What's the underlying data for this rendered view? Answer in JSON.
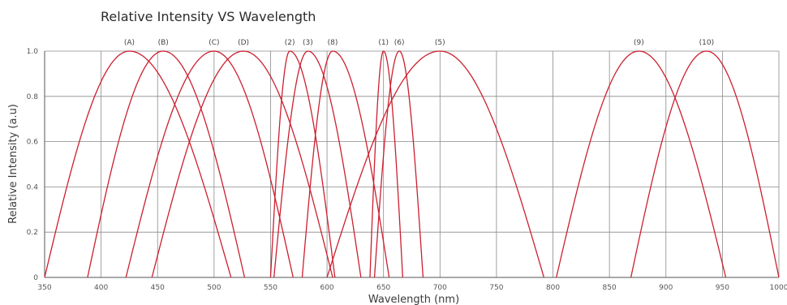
{
  "chart_data": {
    "type": "line",
    "title": "Relative Intensity VS Wavelength",
    "xlabel": "Wavelength (nm)",
    "ylabel": "Relative Intensity (a.u)",
    "xlim": [
      350,
      1000
    ],
    "ylim": [
      0,
      1.0
    ],
    "x_ticks": [
      "350",
      "400",
      "450",
      "500",
      "550",
      "600",
      "650",
      "700",
      "750",
      "800",
      "850",
      "900",
      "950",
      "1000"
    ],
    "y_ticks": [
      "0",
      "0.2",
      "0.4",
      "0.6",
      "0.8",
      "1.0"
    ],
    "grid": true,
    "line_color": "#cc1f2f",
    "series": [
      {
        "name": "(A)",
        "peak": 425,
        "range": [
          350,
          515
        ]
      },
      {
        "name": "(B)",
        "peak": 455,
        "range": [
          388,
          527
        ]
      },
      {
        "name": "(C)",
        "peak": 500,
        "range": [
          422,
          570
        ]
      },
      {
        "name": "(D)",
        "peak": 526,
        "range": [
          445,
          605
        ]
      },
      {
        "name": "(2)",
        "peak": 567,
        "range": [
          550,
          607
        ]
      },
      {
        "name": "(3)",
        "peak": 583,
        "range": [
          553,
          630
        ]
      },
      {
        "name": "(8)",
        "peak": 605,
        "range": [
          578,
          655
        ]
      },
      {
        "name": "(1)",
        "peak": 650,
        "range": [
          638,
          667
        ]
      },
      {
        "name": "(6)",
        "peak": 664,
        "range": [
          642,
          685
        ]
      },
      {
        "name": "(5)",
        "peak": 700,
        "range": [
          600,
          792
        ]
      },
      {
        "name": "(9)",
        "peak": 876,
        "range": [
          803,
          953
        ]
      },
      {
        "name": "(10)",
        "peak": 936,
        "range": [
          869,
          1000
        ]
      }
    ]
  }
}
